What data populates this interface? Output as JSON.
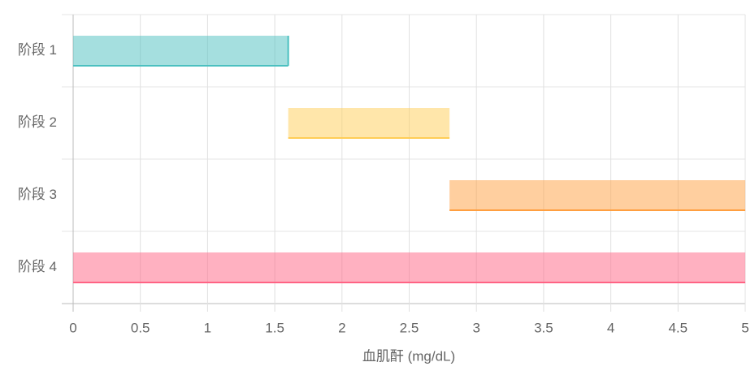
{
  "chart_data": {
    "type": "floating-bar",
    "categories": [
      "阶段 1",
      "阶段 2",
      "阶段 3",
      "阶段 4"
    ],
    "values": [
      [
        0,
        1.6
      ],
      [
        1.6,
        2.8
      ],
      [
        2.8,
        5
      ],
      [
        0,
        5
      ]
    ],
    "colors": [
      "#4bc0c0",
      "#ffcd56",
      "#ff9f40",
      "#ff6384"
    ],
    "x_label": "血肌酐 (mg/dL)",
    "xlim": [
      0,
      5
    ],
    "xticks": [
      0,
      0.5,
      1,
      1.5,
      2,
      2.5,
      3,
      3.5,
      4,
      4.5,
      5
    ],
    "grid": true
  }
}
